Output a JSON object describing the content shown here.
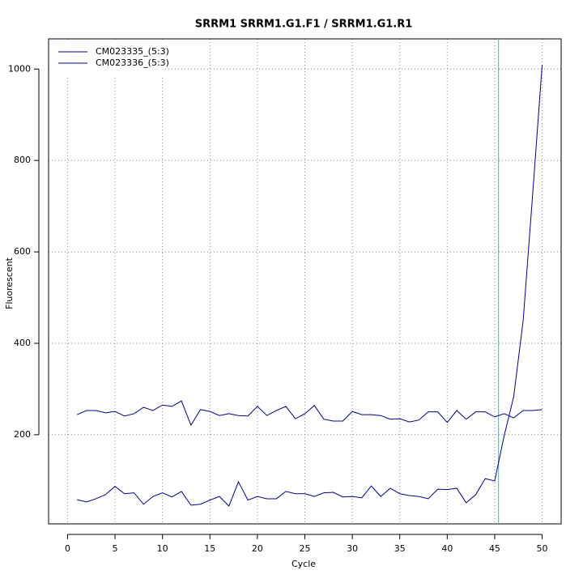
{
  "chart_data": {
    "type": "line",
    "title": "SRRM1  SRRM1.G1.F1 / SRRM1.G1.R1",
    "x_label": "Cycle",
    "y_label": "Fluorescent",
    "x": [
      1,
      2,
      3,
      4,
      5,
      6,
      7,
      8,
      9,
      10,
      11,
      12,
      13,
      14,
      15,
      16,
      17,
      18,
      19,
      20,
      21,
      22,
      23,
      24,
      25,
      26,
      27,
      28,
      29,
      30,
      31,
      32,
      33,
      34,
      35,
      36,
      37,
      38,
      39,
      40,
      41,
      42,
      43,
      44,
      45,
      46,
      47,
      48,
      49,
      50
    ],
    "series": [
      {
        "name": "CM023335_(5:3)",
        "color": "#00008b",
        "values": [
          244,
          253,
          253,
          248,
          251,
          241,
          246,
          260,
          253,
          265,
          262,
          274,
          221,
          255,
          251,
          242,
          246,
          242,
          241,
          262,
          242,
          253,
          262,
          235,
          246,
          264,
          234,
          230,
          230,
          251,
          244,
          244,
          242,
          234,
          235,
          228,
          232,
          250,
          250,
          227,
          253,
          234,
          250,
          250,
          239,
          246,
          237,
          253,
          253,
          255
        ]
      },
      {
        "name": "CM023336_(5:3)",
        "color": "#00008b",
        "values": [
          58,
          53,
          60,
          69,
          87,
          71,
          73,
          48,
          65,
          73,
          64,
          76,
          46,
          48,
          57,
          65,
          44,
          97,
          57,
          65,
          60,
          60,
          76,
          71,
          71,
          65,
          73,
          74,
          64,
          65,
          62,
          88,
          65,
          83,
          71,
          67,
          65,
          60,
          81,
          80,
          83,
          51,
          69,
          104,
          99,
          198,
          283,
          450,
          726,
          1009
        ]
      }
    ],
    "threshold": {
      "value": 45.4,
      "color": "#00e5ee"
    },
    "xlim": [
      -2,
      52
    ],
    "ylim": [
      5,
      1066
    ],
    "xticks": [
      0,
      5,
      10,
      15,
      20,
      25,
      30,
      35,
      40,
      45,
      50
    ],
    "yticks": [
      200,
      400,
      600,
      800,
      1000
    ],
    "grid": true,
    "legend": "top-left"
  }
}
